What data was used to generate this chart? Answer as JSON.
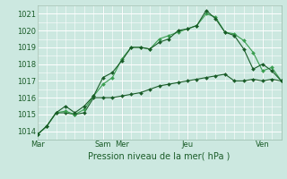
{
  "title": "",
  "xlabel": "Pression niveau de la mer( hPa )",
  "bg_color": "#cce8e0",
  "grid_color": "#ffffff",
  "ylim": [
    1013.5,
    1021.5
  ],
  "yticks": [
    1014,
    1015,
    1016,
    1017,
    1018,
    1019,
    1020,
    1021
  ],
  "day_labels": [
    "Mar",
    "Sam",
    "Mer",
    "Jeu",
    "Ven"
  ],
  "day_positions": [
    0,
    42,
    54,
    96,
    144
  ],
  "xlim": [
    0,
    156
  ],
  "series1_x": [
    0,
    6,
    12,
    18,
    24,
    30,
    36,
    42,
    48,
    54,
    60,
    66,
    72,
    78,
    84,
    90,
    96,
    102,
    108,
    114,
    120,
    126,
    132,
    138,
    144,
    150,
    156
  ],
  "series1_y": [
    1013.8,
    1014.3,
    1015.1,
    1015.1,
    1015.0,
    1015.1,
    1016.0,
    1016.0,
    1016.0,
    1016.1,
    1016.2,
    1016.3,
    1016.5,
    1016.7,
    1016.8,
    1016.9,
    1017.0,
    1017.1,
    1017.2,
    1017.3,
    1017.4,
    1017.0,
    1017.0,
    1017.1,
    1017.0,
    1017.1,
    1017.0
  ],
  "series2_x": [
    0,
    6,
    12,
    18,
    24,
    30,
    36,
    42,
    48,
    54,
    60,
    66,
    72,
    78,
    84,
    90,
    96,
    102,
    108,
    114,
    120,
    126,
    132,
    138,
    144,
    150,
    156
  ],
  "series2_y": [
    1013.8,
    1014.3,
    1015.1,
    1015.2,
    1015.0,
    1015.3,
    1016.1,
    1016.8,
    1017.2,
    1018.3,
    1019.0,
    1019.0,
    1018.9,
    1019.5,
    1019.7,
    1019.9,
    1020.1,
    1020.3,
    1021.0,
    1020.8,
    1019.9,
    1019.8,
    1019.4,
    1018.7,
    1017.6,
    1017.8,
    1017.0
  ],
  "series3_x": [
    0,
    6,
    12,
    18,
    24,
    30,
    36,
    42,
    48,
    54,
    60,
    66,
    72,
    78,
    84,
    90,
    96,
    102,
    108,
    114,
    120,
    126,
    132,
    138,
    144,
    150,
    156
  ],
  "series3_y": [
    1013.8,
    1014.3,
    1015.1,
    1015.5,
    1015.1,
    1015.5,
    1016.1,
    1017.2,
    1017.5,
    1018.2,
    1019.0,
    1019.0,
    1018.9,
    1019.3,
    1019.5,
    1020.0,
    1020.1,
    1020.3,
    1021.2,
    1020.7,
    1019.9,
    1019.7,
    1018.9,
    1017.7,
    1018.0,
    1017.6,
    1017.0
  ],
  "color_dark": "#1a5c28",
  "color_medium": "#3a9e50",
  "marker": "D",
  "marker_size": 2.0,
  "line_width": 0.8,
  "xtick_fontsize": 6.0,
  "ytick_fontsize": 6.0,
  "xlabel_fontsize": 7.0
}
